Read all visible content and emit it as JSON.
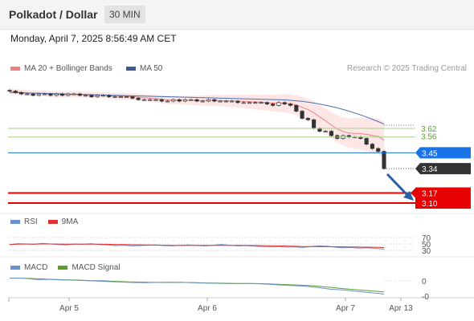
{
  "header": {
    "title": "Polkadot / Dollar",
    "timeframe": "30 MIN"
  },
  "timestamp": "Monday, April 7, 2025 8:56:49 AM CET",
  "credit": "Research © 2025 Trading Central",
  "legend": {
    "bollinger": "MA 20 + Bollinger Bands",
    "ma50": "MA 50",
    "rsi": "RSI",
    "rsi_ma": "9MA",
    "macd": "MACD",
    "macd_signal": "MACD Signal"
  },
  "colors": {
    "bollinger_line": "#f08080",
    "bollinger_fill": "#fde2e2",
    "ma50": "#4a6fb5",
    "support_line": "#a8d08d",
    "support_label": "#5a9e2f",
    "current_level": "#1a73e8",
    "price_label_bg": "#333333",
    "target_red": "#e60000",
    "rsi": "#6b8fd4",
    "rsi_ma": "#e03030",
    "macd": "#6b8fd4",
    "macd_signal": "#5aa02c",
    "candle_up": "#ffffff",
    "candle_down": "#333333",
    "arrow": "#2b5ea8"
  },
  "chart_data": [
    {
      "type": "candlestick",
      "ylim": [
        3.05,
        4.0
      ],
      "x_ticks": [
        "Apr 5",
        "Apr 6",
        "Apr 7",
        "Apr 13"
      ],
      "close": [
        3.88,
        3.87,
        3.86,
        3.86,
        3.85,
        3.86,
        3.86,
        3.85,
        3.86,
        3.85,
        3.86,
        3.86,
        3.85,
        3.85,
        3.84,
        3.85,
        3.85,
        3.84,
        3.84,
        3.84,
        3.84,
        3.83,
        3.82,
        3.82,
        3.82,
        3.82,
        3.81,
        3.81,
        3.82,
        3.81,
        3.82,
        3.82,
        3.81,
        3.81,
        3.82,
        3.81,
        3.81,
        3.81,
        3.81,
        3.8,
        3.8,
        3.8,
        3.8,
        3.8,
        3.79,
        3.78,
        3.8,
        3.79,
        3.78,
        3.74,
        3.69,
        3.68,
        3.62,
        3.6,
        3.6,
        3.57,
        3.55,
        3.57,
        3.56,
        3.56,
        3.55,
        3.51,
        3.48,
        3.46,
        3.34
      ],
      "level_labels": [
        "3.62",
        "3.56",
        "3.45",
        "3.34",
        "3.17",
        "3.10"
      ],
      "ma50_end": 3.65,
      "bollinger_upper_end": 3.68,
      "bollinger_lower_end": 3.42
    },
    {
      "type": "line",
      "name": "RSI",
      "levels": [
        "70",
        "50",
        "30"
      ],
      "values": [
        48,
        51,
        50,
        49,
        52,
        50,
        48,
        47,
        50,
        49,
        51,
        48,
        47,
        45,
        46,
        44,
        45,
        46,
        47,
        45,
        44,
        46,
        47,
        45,
        44,
        46,
        48,
        46,
        44,
        45,
        43,
        42,
        41,
        42,
        40,
        41,
        39,
        42,
        44,
        43,
        40,
        38,
        39,
        37,
        38,
        36,
        34
      ]
    },
    {
      "type": "line",
      "name": "MACD",
      "levels": [
        "0",
        "-0"
      ],
      "values": [
        0.01,
        0.01,
        0.005,
        0.005,
        0.003,
        0.002,
        0.0,
        -0.002,
        -0.004,
        -0.006,
        -0.007,
        -0.006,
        -0.005,
        -0.006,
        -0.008,
        -0.009,
        -0.01,
        -0.011,
        -0.01,
        -0.012,
        -0.015,
        -0.018,
        -0.02,
        -0.025,
        -0.032,
        -0.035,
        -0.04,
        -0.045,
        -0.05
      ],
      "signal": [
        0.01,
        0.01,
        0.008,
        0.006,
        0.004,
        0.003,
        0.001,
        0.0,
        -0.002,
        -0.004,
        -0.005,
        -0.006,
        -0.006,
        -0.006,
        -0.007,
        -0.008,
        -0.009,
        -0.01,
        -0.01,
        -0.011,
        -0.013,
        -0.015,
        -0.017,
        -0.02,
        -0.025,
        -0.03,
        -0.034,
        -0.038,
        -0.042
      ]
    }
  ]
}
